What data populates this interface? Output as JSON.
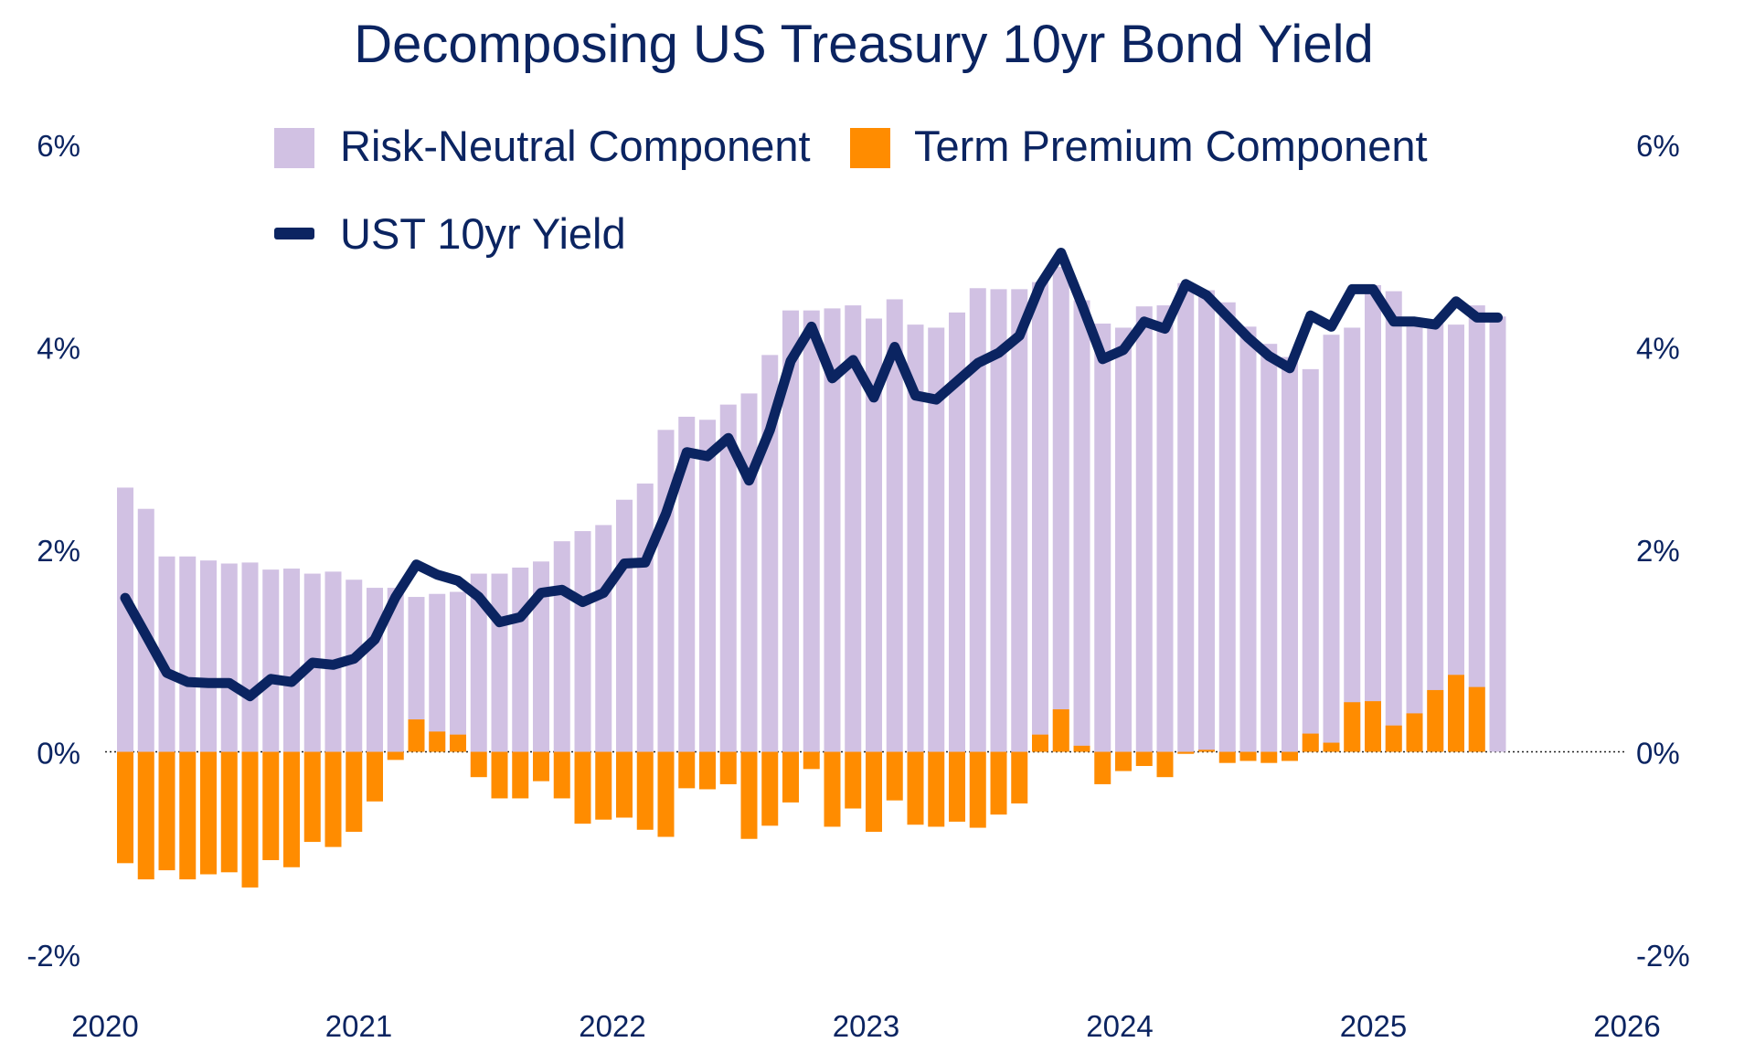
{
  "chart_data": {
    "type": "bar",
    "title": "Decomposing US Treasury 10yr Bond Yield",
    "legend": {
      "placement": "top",
      "items": [
        {
          "label": "Risk-Neutral Component",
          "kind": "bar",
          "color": "#d1c1e3"
        },
        {
          "label": "Term Premium Component",
          "kind": "bar",
          "color": "#ff8c00"
        },
        {
          "label": "UST 10yr Yield",
          "kind": "line",
          "color": "#0b2461"
        }
      ]
    },
    "x_axis": {
      "type": "date",
      "range": [
        "2020-01",
        "2026-01"
      ],
      "tick_labels": [
        "2020",
        "2021",
        "2022",
        "2023",
        "2024",
        "2025",
        "2026"
      ]
    },
    "y_axis": {
      "range": [
        -2,
        6
      ],
      "unit": "%",
      "tick_labels": [
        "-2%",
        "0%",
        "2%",
        "4%",
        "6%"
      ],
      "tick_values": [
        -2,
        0,
        2,
        4,
        6
      ],
      "right_axis_mirror": true,
      "zero_line": "dotted",
      "grid": false
    },
    "x": [
      "2020-01",
      "2020-02",
      "2020-03",
      "2020-04",
      "2020-05",
      "2020-06",
      "2020-07",
      "2020-08",
      "2020-09",
      "2020-10",
      "2020-11",
      "2020-12",
      "2021-01",
      "2021-02",
      "2021-03",
      "2021-04",
      "2021-05",
      "2021-06",
      "2021-07",
      "2021-08",
      "2021-09",
      "2021-10",
      "2021-11",
      "2021-12",
      "2022-01",
      "2022-02",
      "2022-03",
      "2022-04",
      "2022-05",
      "2022-06",
      "2022-07",
      "2022-08",
      "2022-09",
      "2022-10",
      "2022-11",
      "2022-12",
      "2023-01",
      "2023-02",
      "2023-03",
      "2023-04",
      "2023-05",
      "2023-06",
      "2023-07",
      "2023-08",
      "2023-09",
      "2023-10",
      "2023-11",
      "2023-12",
      "2024-01",
      "2024-02",
      "2024-03",
      "2024-04",
      "2024-05",
      "2024-06",
      "2024-07",
      "2024-08",
      "2024-09",
      "2024-10",
      "2024-11",
      "2024-12",
      "2025-01",
      "2025-02",
      "2025-03",
      "2025-04",
      "2025-05",
      "2025-06",
      "2025-07"
    ],
    "series": [
      {
        "name": "Risk-Neutral Component",
        "type": "bar",
        "color": "#d1c1e3",
        "values": [
          2.61,
          2.4,
          1.93,
          1.93,
          1.89,
          1.86,
          1.87,
          1.8,
          1.81,
          1.76,
          1.78,
          1.7,
          1.62,
          1.62,
          1.53,
          1.56,
          1.58,
          1.76,
          1.76,
          1.82,
          1.88,
          2.08,
          2.18,
          2.24,
          2.49,
          2.65,
          3.18,
          3.31,
          3.28,
          3.43,
          3.54,
          3.92,
          4.36,
          4.36,
          4.38,
          4.41,
          4.28,
          4.47,
          4.22,
          4.19,
          4.34,
          4.58,
          4.57,
          4.57,
          4.64,
          4.79,
          4.46,
          4.23,
          4.19,
          4.4,
          4.41,
          4.63,
          4.56,
          4.44,
          4.2,
          4.03,
          3.9,
          3.78,
          4.12,
          4.19,
          4.61,
          4.55,
          4.22,
          4.23,
          4.22,
          4.41,
          4.3
        ]
      },
      {
        "name": "Term Premium Component",
        "type": "bar",
        "color": "#ff8c00",
        "values": [
          -1.1,
          -1.26,
          -1.17,
          -1.26,
          -1.21,
          -1.19,
          -1.34,
          -1.07,
          -1.14,
          -0.89,
          -0.94,
          -0.79,
          -0.49,
          -0.08,
          0.32,
          0.2,
          0.17,
          -0.25,
          -0.46,
          -0.46,
          -0.29,
          -0.46,
          -0.71,
          -0.67,
          -0.65,
          -0.77,
          -0.84,
          -0.36,
          -0.37,
          -0.32,
          -0.86,
          -0.73,
          -0.5,
          -0.17,
          -0.74,
          -0.56,
          -0.79,
          -0.48,
          -0.72,
          -0.74,
          -0.69,
          -0.75,
          -0.62,
          -0.51,
          0.17,
          0.42,
          0.06,
          -0.32,
          -0.19,
          -0.14,
          -0.25,
          -0.02,
          0.02,
          -0.11,
          -0.09,
          -0.11,
          -0.09,
          0.18,
          0.09,
          0.49,
          0.5,
          0.26,
          0.38,
          0.61,
          0.76,
          0.64,
          0.0
        ]
      },
      {
        "name": "UST 10yr Yield",
        "type": "line",
        "color": "#0b2461",
        "values": [
          1.52,
          1.15,
          0.78,
          0.69,
          0.68,
          0.68,
          0.55,
          0.72,
          0.69,
          0.88,
          0.86,
          0.92,
          1.11,
          1.53,
          1.85,
          1.75,
          1.69,
          1.53,
          1.28,
          1.33,
          1.57,
          1.6,
          1.48,
          1.57,
          1.86,
          1.87,
          2.35,
          2.96,
          2.92,
          3.1,
          2.68,
          3.18,
          3.86,
          4.2,
          3.69,
          3.87,
          3.5,
          4.0,
          3.52,
          3.48,
          3.66,
          3.84,
          3.94,
          4.11,
          4.61,
          4.93,
          4.42,
          3.88,
          3.97,
          4.25,
          4.18,
          4.62,
          4.51,
          4.3,
          4.09,
          3.91,
          3.79,
          4.31,
          4.2,
          4.57,
          4.57,
          4.25,
          4.25,
          4.22,
          4.45,
          4.29,
          4.29
        ]
      }
    ]
  }
}
